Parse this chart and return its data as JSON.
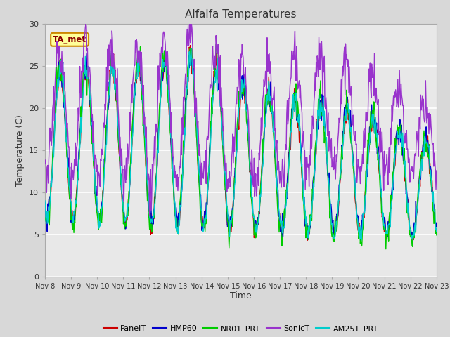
{
  "title": "Alfalfa Temperatures",
  "ylabel": "Temperature (C)",
  "xlabel": "Time",
  "annotation_text": "TA_met",
  "annotation_color": "#8B0000",
  "annotation_bg": "#FFFF99",
  "annotation_border": "#CC8800",
  "ylim": [
    0,
    30
  ],
  "yticks": [
    0,
    5,
    10,
    15,
    20,
    25,
    30
  ],
  "xtick_labels": [
    "Nov 8",
    "Nov 9",
    "Nov 10",
    "Nov 11",
    "Nov 12",
    "Nov 13",
    "Nov 14",
    "Nov 15",
    "Nov 16",
    "Nov 17",
    "Nov 18",
    "Nov 19",
    "Nov 20",
    "Nov 21",
    "Nov 22",
    "Nov 23"
  ],
  "fig_bg_color": "#D8D8D8",
  "plot_bg_color": "#E8E8E8",
  "grid_color": "#FFFFFF",
  "series_colors": {
    "PanelT": "#CC0000",
    "HMP60": "#0000CC",
    "NR01_PRT": "#00CC00",
    "SonicT": "#9933CC",
    "AM25T_PRT": "#00CCCC"
  },
  "legend_entries": [
    "PanelT",
    "HMP60",
    "NR01_PRT",
    "SonicT",
    "AM25T_PRT"
  ],
  "legend_colors": [
    "#CC0000",
    "#0000CC",
    "#00CC00",
    "#9933CC",
    "#00CCCC"
  ]
}
